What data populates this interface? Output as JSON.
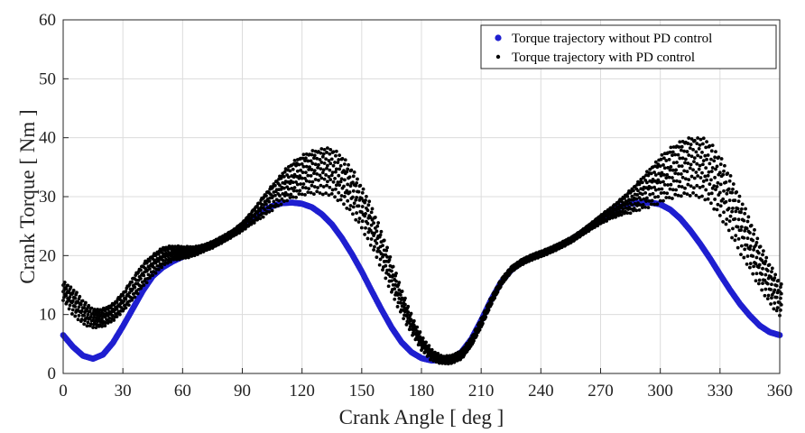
{
  "chart_data": {
    "type": "scatter",
    "xlabel": "Crank Angle [ deg ]",
    "ylabel": "Crank Torque [ Nm ]",
    "xlim": [
      0,
      360
    ],
    "ylim": [
      0,
      60
    ],
    "xticks": [
      "0",
      "30",
      "60",
      "90",
      "120",
      "150",
      "180",
      "210",
      "240",
      "270",
      "300",
      "330",
      "360"
    ],
    "yticks": [
      "0",
      "10",
      "20",
      "30",
      "40",
      "50",
      "60"
    ],
    "grid": true,
    "legend_position": "top-right",
    "series": [
      {
        "name": "Torque trajectory without PD control",
        "color": "#1f1fd0",
        "x": [
          0,
          5,
          10,
          15,
          20,
          25,
          30,
          35,
          40,
          45,
          50,
          55,
          60,
          65,
          70,
          75,
          80,
          85,
          90,
          95,
          100,
          105,
          110,
          115,
          120,
          125,
          130,
          135,
          140,
          145,
          150,
          155,
          160,
          165,
          170,
          175,
          180,
          185,
          190,
          195,
          200,
          205,
          210,
          215,
          220,
          225,
          230,
          235,
          240,
          245,
          250,
          255,
          260,
          265,
          270,
          275,
          280,
          285,
          290,
          295,
          300,
          305,
          310,
          315,
          320,
          325,
          330,
          335,
          340,
          345,
          350,
          355,
          360
        ],
        "y": [
          6.5,
          4.5,
          3.0,
          2.5,
          3.2,
          5.2,
          8.0,
          11.0,
          14.0,
          16.5,
          18.0,
          19.0,
          19.8,
          20.6,
          21.3,
          22.0,
          22.8,
          23.8,
          25.0,
          26.3,
          27.5,
          28.4,
          28.9,
          29.0,
          28.8,
          28.2,
          27.0,
          25.3,
          23.0,
          20.3,
          17.3,
          14.0,
          10.8,
          7.8,
          5.3,
          3.6,
          2.6,
          2.2,
          2.3,
          2.6,
          3.6,
          5.8,
          9.0,
          12.5,
          15.5,
          17.5,
          18.8,
          19.6,
          20.3,
          21.0,
          21.8,
          22.7,
          23.8,
          25.0,
          26.3,
          27.5,
          28.3,
          28.8,
          29.0,
          29.0,
          28.7,
          27.8,
          26.3,
          24.3,
          22.0,
          19.5,
          16.8,
          14.2,
          11.8,
          9.8,
          8.1,
          7.0,
          6.5
        ]
      },
      {
        "name": "Torque trajectory with PD control",
        "color": "#000000",
        "x": [
          0,
          5,
          10,
          15,
          20,
          25,
          30,
          35,
          40,
          45,
          50,
          55,
          60,
          65,
          70,
          75,
          80,
          85,
          90,
          95,
          100,
          105,
          110,
          115,
          120,
          125,
          130,
          135,
          140,
          145,
          150,
          155,
          160,
          165,
          170,
          175,
          180,
          185,
          190,
          195,
          200,
          205,
          210,
          215,
          220,
          225,
          230,
          235,
          240,
          245,
          250,
          255,
          260,
          265,
          270,
          275,
          280,
          285,
          290,
          295,
          300,
          305,
          310,
          315,
          320,
          325,
          330,
          335,
          340,
          345,
          350,
          355,
          360
        ],
        "y": [
          14.0,
          12.0,
          10.2,
          9.3,
          9.5,
          10.5,
          12.2,
          14.5,
          16.8,
          18.5,
          19.8,
          20.4,
          20.5,
          20.7,
          21.2,
          21.9,
          22.8,
          23.8,
          25.0,
          26.6,
          28.3,
          30.0,
          31.6,
          32.8,
          33.7,
          34.2,
          34.4,
          34.0,
          32.8,
          30.8,
          28.0,
          24.5,
          20.5,
          16.0,
          11.8,
          8.0,
          5.0,
          3.0,
          2.3,
          2.4,
          3.2,
          5.5,
          8.8,
          12.5,
          15.6,
          17.7,
          18.9,
          19.7,
          20.3,
          21.0,
          21.8,
          22.7,
          23.8,
          25.0,
          26.2,
          27.3,
          28.3,
          29.3,
          30.5,
          31.8,
          33.0,
          34.0,
          34.8,
          35.2,
          35.0,
          33.8,
          31.5,
          28.5,
          25.0,
          21.5,
          18.0,
          15.0,
          12.5
        ],
        "spread": [
          1.5,
          2.0,
          1.8,
          1.5,
          1.5,
          1.5,
          1.7,
          2.0,
          2.0,
          1.8,
          1.6,
          1.2,
          1.0,
          0.8,
          0.6,
          0.6,
          0.6,
          0.6,
          0.8,
          1.2,
          1.8,
          2.2,
          2.6,
          3.0,
          3.3,
          3.5,
          3.7,
          3.8,
          3.7,
          3.5,
          3.2,
          3.0,
          2.7,
          2.3,
          1.8,
          1.2,
          1.0,
          0.8,
          0.6,
          0.7,
          0.8,
          0.8,
          0.8,
          0.7,
          0.6,
          0.5,
          0.5,
          0.5,
          0.5,
          0.5,
          0.5,
          0.5,
          0.5,
          0.6,
          0.8,
          1.0,
          1.4,
          2.0,
          2.6,
          3.3,
          3.8,
          4.2,
          4.5,
          4.7,
          4.8,
          4.8,
          4.7,
          4.5,
          4.2,
          3.8,
          3.3,
          3.0,
          2.6
        ]
      }
    ]
  }
}
